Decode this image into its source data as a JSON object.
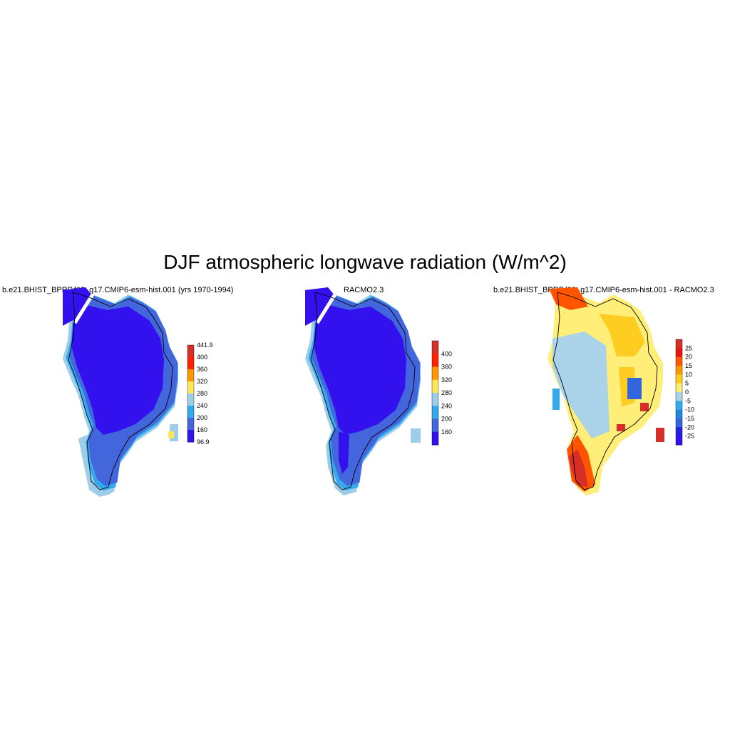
{
  "figure": {
    "title": "DJF atmospheric longwave radiation (W/m^2)"
  },
  "panels": [
    {
      "title": "b.e21.BHIST_BPRP.f09_g17.CMIP6-esm-hist.001 (yrs 1970-1994)",
      "colorbar": {
        "labels": [
          "441.9",
          "400",
          "360",
          "320",
          "280",
          "240",
          "200",
          "160",
          "96.9"
        ],
        "colors": [
          "#d62f27",
          "#ff2200",
          "#ff9900",
          "#ffe55a",
          "#9ecde9",
          "#33aaee",
          "#4466dd",
          "#3311ee"
        ]
      }
    },
    {
      "title": "RACMO2.3",
      "colorbar": {
        "labels": [
          "400",
          "360",
          "320",
          "280",
          "240",
          "200",
          "160"
        ],
        "colors": [
          "#d62f27",
          "#ff2200",
          "#ff9900",
          "#ffe55a",
          "#9ecde9",
          "#33aaee",
          "#4466dd",
          "#3311ee"
        ]
      }
    },
    {
      "title": "b.e21.BHIST_BPRP.f09_g17.CMIP6-esm-hist.001 - RACMO2.3",
      "colorbar": {
        "labels": [
          "25",
          "20",
          "15",
          "10",
          "5",
          "0",
          "-5",
          "-10",
          "-15",
          "-20",
          "-25"
        ],
        "colors": [
          "#d62f27",
          "#ee1111",
          "#ff5500",
          "#ff9900",
          "#ffcc22",
          "#ffee77",
          "#aad3ea",
          "#33aaee",
          "#2288dd",
          "#3366dd",
          "#2222dd",
          "#3311ee"
        ]
      }
    }
  ],
  "colors": {
    "interior_low": "#3311ee",
    "margin_mid": "#4466dd",
    "edge_light": "#33aaee",
    "edge_pale": "#9ecde9",
    "diff_neutral": "#ffee77",
    "diff_warm": "#ffcc22",
    "diff_hot": "#d62f27"
  }
}
